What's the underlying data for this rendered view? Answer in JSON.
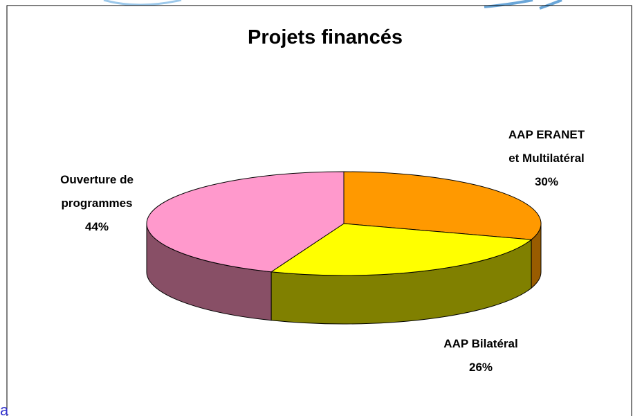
{
  "chart_data": {
    "type": "pie3d",
    "title": "Projets financés",
    "categories": [
      "AAP ERANET\net Multilatéral",
      "AAP Bilatéral",
      "Ouverture de\nprogrammes"
    ],
    "values": [
      30,
      26,
      44
    ],
    "value_labels": [
      "30%",
      "26%",
      "44%"
    ],
    "colors": [
      "#ff9900",
      "#ffff00",
      "#ff99cc"
    ],
    "side_colors": [
      "#995c00",
      "#808000",
      "#884f66"
    ]
  },
  "fragment": "a"
}
